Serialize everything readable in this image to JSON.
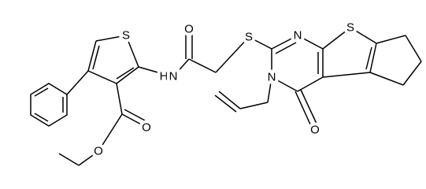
{
  "atoms": [
    "S",
    "H",
    "N",
    "O",
    "S",
    "N",
    "S",
    "N",
    "O",
    "O",
    "O"
  ]
}
